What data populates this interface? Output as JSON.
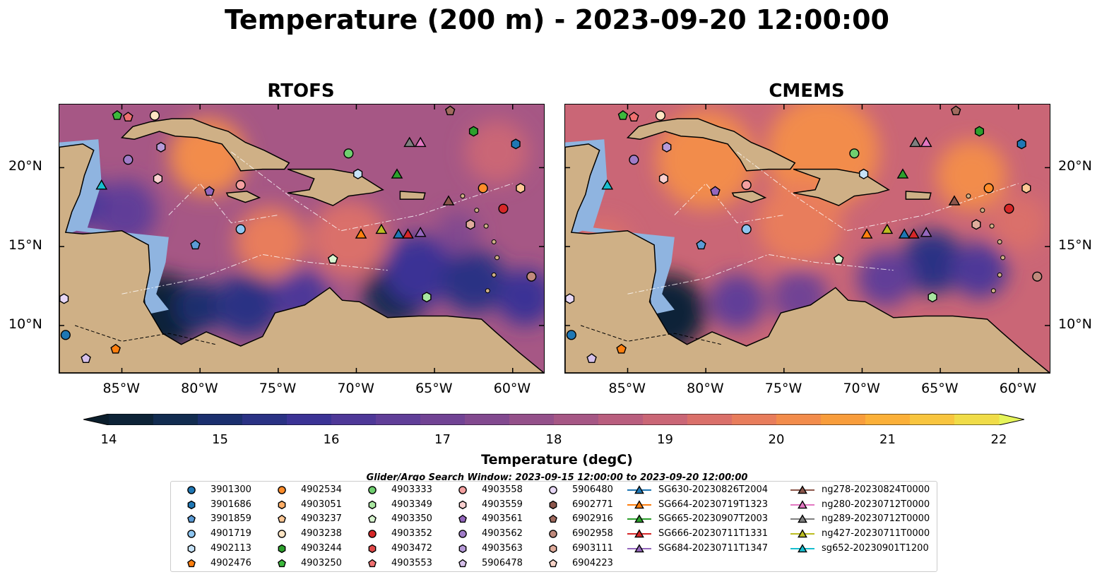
{
  "title": "Temperature (200 m) - 2023-09-20 12:00:00",
  "panels": [
    {
      "title": "RTOFS"
    },
    {
      "title": "CMEMS"
    }
  ],
  "axes": {
    "lon_ticks": [
      "85°W",
      "80°W",
      "75°W",
      "70°W",
      "65°W",
      "60°W"
    ],
    "lat_ticks": [
      "20°N",
      "15°N",
      "10°N"
    ],
    "lon_values": [
      -85,
      -80,
      -75,
      -70,
      -65,
      -60
    ],
    "lat_values": [
      20,
      15,
      10
    ],
    "extent": {
      "lon_min": -89,
      "lon_max": -58,
      "lat_min": 7,
      "lat_max": 24
    }
  },
  "colorbar": {
    "label": "Temperature (degC)",
    "min": 14,
    "max": 22,
    "ticks": [
      "14",
      "15",
      "16",
      "17",
      "18",
      "19",
      "20",
      "21",
      "22"
    ],
    "step": 0.5,
    "colors": [
      "#0d2337",
      "#122c50",
      "#1b2f6e",
      "#2a3284",
      "#3b3395",
      "#4e3898",
      "#603e98",
      "#714394",
      "#82498f",
      "#94508a",
      "#a65785",
      "#b95e7e",
      "#ca6676",
      "#da706a",
      "#e87d5c",
      "#f28c4c",
      "#f89d3c",
      "#fbb039",
      "#f8c53f",
      "#f0dc48"
    ],
    "extend_low": "#0b1e2c",
    "extend_high": "#e6f55a"
  },
  "search_window": "Glider/Argo Search Window: 2023-09-15 12:00:00 to 2023-09-20 12:00:00",
  "legend": {
    "columns": [
      [
        {
          "label": "3901300",
          "marker": "circle",
          "color": "#1f77b4"
        },
        {
          "label": "3901686",
          "marker": "hexagon",
          "color": "#1f77b4"
        },
        {
          "label": "3901859",
          "marker": "pentagon",
          "color": "#5b9bd5"
        },
        {
          "label": "4901719",
          "marker": "circle",
          "color": "#8ec5f0"
        },
        {
          "label": "4902113",
          "marker": "hexagon",
          "color": "#c6e2f7"
        },
        {
          "label": "4902476",
          "marker": "pentagon",
          "color": "#ff7f0e"
        }
      ],
      [
        {
          "label": "4902534",
          "marker": "circle",
          "color": "#ff8c2a"
        },
        {
          "label": "4903051",
          "marker": "hexagon",
          "color": "#ffad66"
        },
        {
          "label": "4903237",
          "marker": "pentagon",
          "color": "#ffc896"
        },
        {
          "label": "4903238",
          "marker": "circle",
          "color": "#ffe5c4"
        },
        {
          "label": "4903244",
          "marker": "hexagon",
          "color": "#2ca02c"
        },
        {
          "label": "4903250",
          "marker": "pentagon",
          "color": "#3cb83c"
        }
      ],
      [
        {
          "label": "4903333",
          "marker": "circle",
          "color": "#6fcf6f"
        },
        {
          "label": "4903349",
          "marker": "hexagon",
          "color": "#a8e6a0"
        },
        {
          "label": "4903350",
          "marker": "pentagon",
          "color": "#d8f5d0"
        },
        {
          "label": "4903352",
          "marker": "circle",
          "color": "#d62728"
        },
        {
          "label": "4903472",
          "marker": "hexagon",
          "color": "#e04848"
        },
        {
          "label": "4903553",
          "marker": "pentagon",
          "color": "#f07070"
        }
      ],
      [
        {
          "label": "4903558",
          "marker": "circle",
          "color": "#f4a0a0"
        },
        {
          "label": "4903559",
          "marker": "hexagon",
          "color": "#fad0d0"
        },
        {
          "label": "4903561",
          "marker": "pentagon",
          "color": "#9467bd"
        },
        {
          "label": "4903562",
          "marker": "circle",
          "color": "#a07cc8"
        },
        {
          "label": "4903563",
          "marker": "hexagon",
          "color": "#b69ad8"
        },
        {
          "label": "5906478",
          "marker": "pentagon",
          "color": "#d6c0ea"
        }
      ],
      [
        {
          "label": "5906480",
          "marker": "circle",
          "color": "#e8d8f6"
        },
        {
          "label": "6902771",
          "marker": "hexagon",
          "color": "#8c564b"
        },
        {
          "label": "6902916",
          "marker": "pentagon",
          "color": "#a06a5e"
        },
        {
          "label": "6902958",
          "marker": "circle",
          "color": "#c08a7c"
        },
        {
          "label": "6903111",
          "marker": "hexagon",
          "color": "#e0ac9c"
        },
        {
          "label": "6904223",
          "marker": "pentagon",
          "color": "#f8d4c8"
        }
      ],
      [
        {
          "label": "SG630-20230826T2004",
          "marker": "triangle",
          "color": "#1f77b4"
        },
        {
          "label": "SG664-20230719T1323",
          "marker": "triangle",
          "color": "#ff7f0e"
        },
        {
          "label": "SG665-20230907T2003",
          "marker": "triangle",
          "color": "#2ca02c"
        },
        {
          "label": "SG666-20230711T1331",
          "marker": "triangle",
          "color": "#d62728"
        },
        {
          "label": "SG684-20230711T1347",
          "marker": "triangle",
          "color": "#9467bd"
        }
      ],
      [
        {
          "label": "ng278-20230824T0000",
          "marker": "triangle",
          "color": "#8c564b"
        },
        {
          "label": "ng280-20230712T0000",
          "marker": "triangle",
          "color": "#e377c2"
        },
        {
          "label": "ng289-20230712T0000",
          "marker": "triangle",
          "color": "#7f7f7f"
        },
        {
          "label": "ng427-20230711T0000",
          "marker": "triangle",
          "color": "#bcbd22"
        },
        {
          "label": "sg652-20230901T1200",
          "marker": "triangle",
          "color": "#17becf"
        }
      ]
    ]
  },
  "map_markers": [
    {
      "lon": -85.3,
      "lat": 23.3,
      "marker": "pentagon",
      "color": "#3cb83c"
    },
    {
      "lon": -84.6,
      "lat": 23.2,
      "marker": "pentagon",
      "color": "#f07070"
    },
    {
      "lon": -82.9,
      "lat": 23.3,
      "marker": "circle",
      "color": "#ffe5c4"
    },
    {
      "lon": -64.0,
      "lat": 23.6,
      "marker": "pentagon",
      "color": "#a06a5e"
    },
    {
      "lon": -62.5,
      "lat": 22.3,
      "marker": "hexagon",
      "color": "#2ca02c"
    },
    {
      "lon": -59.8,
      "lat": 21.5,
      "marker": "hexagon",
      "color": "#1f77b4"
    },
    {
      "lon": -84.6,
      "lat": 20.5,
      "marker": "circle",
      "color": "#a07cc8"
    },
    {
      "lon": -82.5,
      "lat": 21.3,
      "marker": "hexagon",
      "color": "#b69ad8"
    },
    {
      "lon": -82.7,
      "lat": 19.3,
      "marker": "hexagon",
      "color": "#fad0d0"
    },
    {
      "lon": -79.4,
      "lat": 18.5,
      "marker": "pentagon",
      "color": "#9467bd"
    },
    {
      "lon": -77.4,
      "lat": 18.9,
      "marker": "circle",
      "color": "#f4a0a0"
    },
    {
      "lon": -77.4,
      "lat": 16.1,
      "marker": "circle",
      "color": "#8ec5f0"
    },
    {
      "lon": -80.3,
      "lat": 15.1,
      "marker": "pentagon",
      "color": "#5b9bd5"
    },
    {
      "lon": -70.5,
      "lat": 20.9,
      "marker": "circle",
      "color": "#6fcf6f"
    },
    {
      "lon": -69.9,
      "lat": 19.6,
      "marker": "hexagon",
      "color": "#c6e2f7"
    },
    {
      "lon": -71.5,
      "lat": 14.2,
      "marker": "pentagon",
      "color": "#d8f5d0"
    },
    {
      "lon": -61.9,
      "lat": 18.7,
      "marker": "circle",
      "color": "#ff8c2a"
    },
    {
      "lon": -59.5,
      "lat": 18.7,
      "marker": "hexagon",
      "color": "#ffc896"
    },
    {
      "lon": -60.6,
      "lat": 17.4,
      "marker": "circle",
      "color": "#d62728"
    },
    {
      "lon": -62.7,
      "lat": 16.4,
      "marker": "hexagon",
      "color": "#e0ac9c"
    },
    {
      "lon": -58.8,
      "lat": 13.1,
      "marker": "circle",
      "color": "#c08a7c"
    },
    {
      "lon": -65.5,
      "lat": 11.8,
      "marker": "hexagon",
      "color": "#a8e6a0"
    },
    {
      "lon": -88.7,
      "lat": 11.7,
      "marker": "hexagon",
      "color": "#e8d8f6"
    },
    {
      "lon": -88.6,
      "lat": 9.4,
      "marker": "circle",
      "color": "#1f77b4"
    },
    {
      "lon": -87.3,
      "lat": 7.9,
      "marker": "pentagon",
      "color": "#d6c0ea"
    },
    {
      "lon": -85.4,
      "lat": 8.5,
      "marker": "pentagon",
      "color": "#ff7f0e"
    },
    {
      "lon": -86.3,
      "lat": 18.9,
      "marker": "triangle",
      "color": "#17becf"
    },
    {
      "lon": -66.6,
      "lat": 21.6,
      "marker": "triangle",
      "color": "#7f7f7f"
    },
    {
      "lon": -65.9,
      "lat": 21.6,
      "marker": "triangle",
      "color": "#e377c2"
    },
    {
      "lon": -67.4,
      "lat": 19.6,
      "marker": "triangle",
      "color": "#2ca02c"
    },
    {
      "lon": -64.1,
      "lat": 17.9,
      "marker": "triangle",
      "color": "#8c564b"
    },
    {
      "lon": -69.7,
      "lat": 15.8,
      "marker": "triangle",
      "color": "#ff7f0e"
    },
    {
      "lon": -68.4,
      "lat": 16.1,
      "marker": "triangle",
      "color": "#bcbd22"
    },
    {
      "lon": -67.3,
      "lat": 15.8,
      "marker": "triangle",
      "color": "#1f77b4"
    },
    {
      "lon": -66.7,
      "lat": 15.8,
      "marker": "triangle",
      "color": "#d62728"
    },
    {
      "lon": -65.9,
      "lat": 15.9,
      "marker": "triangle",
      "color": "#9467bd"
    }
  ]
}
